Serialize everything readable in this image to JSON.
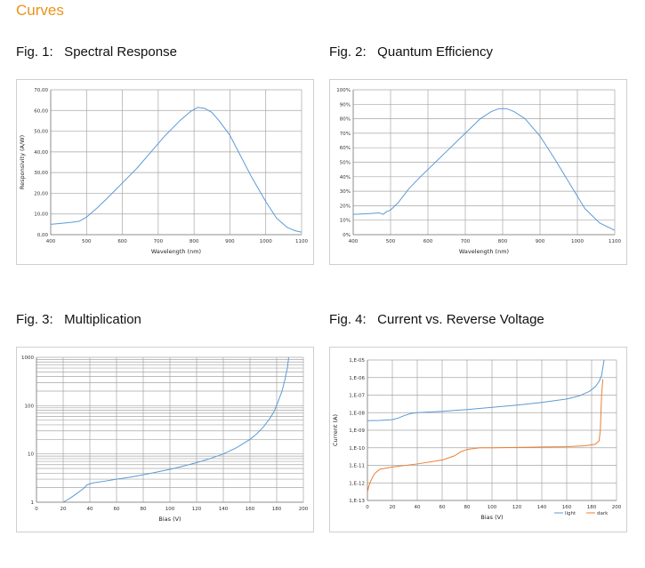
{
  "page": {
    "section_title": "Curves"
  },
  "chart_data": [
    {
      "id": "fig1",
      "figure_title": "Fig. 1:   Spectral Response",
      "type": "line",
      "xlabel": "Wavelength (nm)",
      "ylabel": "Responsivity (A/W)",
      "xlim": [
        400,
        1100
      ],
      "ylim": [
        0,
        70
      ],
      "x_ticks": [
        "400",
        "500",
        "600",
        "700",
        "800",
        "900",
        "1000",
        "1100"
      ],
      "y_ticks": [
        "0,00",
        "10,00",
        "20,00",
        "30,00",
        "40,00",
        "50,00",
        "60,00",
        "70,00"
      ],
      "grid": true,
      "series": [
        {
          "color": "#5b9bd5",
          "x": [
            400,
            430,
            460,
            480,
            500,
            530,
            560,
            600,
            640,
            680,
            720,
            760,
            790,
            810,
            830,
            850,
            870,
            900,
            930,
            960,
            1000,
            1030,
            1060,
            1080,
            1100
          ],
          "y": [
            5,
            5.5,
            6,
            6.5,
            8.5,
            13,
            18,
            25,
            32,
            40,
            48,
            55,
            59.5,
            61.5,
            61,
            59,
            55,
            48,
            38,
            28,
            16,
            8,
            3.5,
            2,
            1.2
          ]
        }
      ]
    },
    {
      "id": "fig2",
      "figure_title": "Fig. 2:   Quantum Efficiency",
      "type": "line",
      "xlabel": "Wavelength (nm)",
      "ylabel": "",
      "xlim": [
        400,
        1100
      ],
      "ylim": [
        0,
        100
      ],
      "x_ticks": [
        "400",
        "500",
        "600",
        "700",
        "800",
        "900",
        "1000",
        "1100"
      ],
      "y_ticks": [
        "0%",
        "10%",
        "20%",
        "30%",
        "40%",
        "50%",
        "60%",
        "70%",
        "80%",
        "90%",
        "100%"
      ],
      "grid": true,
      "series": [
        {
          "color": "#5b9bd5",
          "x": [
            400,
            440,
            470,
            480,
            490,
            500,
            520,
            550,
            580,
            620,
            660,
            700,
            740,
            770,
            790,
            810,
            830,
            860,
            900,
            940,
            980,
            1020,
            1060,
            1100
          ],
          "y": [
            14,
            14.5,
            15,
            14,
            16,
            17,
            22,
            32,
            40,
            50,
            60,
            70,
            80,
            85,
            87,
            87,
            85,
            80,
            68,
            52,
            35,
            18,
            8,
            3
          ]
        }
      ]
    },
    {
      "id": "fig3",
      "figure_title": "Fig. 3:   Multiplication",
      "type": "line",
      "scale_y": "log",
      "xlabel": "Bias (V)",
      "ylabel": "",
      "xlim": [
        0,
        200
      ],
      "ylim": [
        1,
        1000
      ],
      "x_ticks": [
        "0",
        "20",
        "40",
        "60",
        "80",
        "100",
        "120",
        "140",
        "160",
        "180",
        "200"
      ],
      "y_ticks": [
        "1",
        "10",
        "100",
        "1000"
      ],
      "y_tick_values": [
        1,
        10,
        100,
        1000
      ],
      "grid": true,
      "series": [
        {
          "color": "#5b9bd5",
          "x": [
            20,
            25,
            30,
            35,
            38,
            42,
            50,
            60,
            70,
            80,
            90,
            100,
            110,
            120,
            130,
            140,
            150,
            160,
            165,
            170,
            175,
            178,
            181,
            184,
            186,
            188,
            189
          ],
          "y": [
            1,
            1.2,
            1.5,
            1.9,
            2.3,
            2.5,
            2.7,
            3,
            3.3,
            3.7,
            4.2,
            4.8,
            5.6,
            6.6,
            8,
            10,
            13.5,
            20,
            26,
            36,
            55,
            75,
            120,
            200,
            330,
            600,
            1000
          ]
        }
      ]
    },
    {
      "id": "fig4",
      "figure_title": "Fig. 4:   Current vs. Reverse Voltage",
      "type": "line",
      "scale_y": "log",
      "xlabel": "Bias (V)",
      "ylabel": "Current (A)",
      "xlim": [
        0,
        200
      ],
      "ylim": [
        1e-13,
        1e-05
      ],
      "x_ticks": [
        "0",
        "20",
        "40",
        "60",
        "80",
        "100",
        "120",
        "140",
        "160",
        "180",
        "200"
      ],
      "y_ticks": [
        "1,E-13",
        "1,E-12",
        "1,E-11",
        "1,E-10",
        "1,E-09",
        "1,E-08",
        "1,E-07",
        "1,E-06",
        "1,E-05"
      ],
      "y_tick_values": [
        1e-13,
        1e-12,
        1e-11,
        1e-10,
        1e-09,
        1e-08,
        1e-07,
        1e-06,
        1e-05
      ],
      "grid": true,
      "legend": "bottom-right",
      "series": [
        {
          "name": "light",
          "color": "#5b9bd5",
          "x": [
            0,
            10,
            20,
            25,
            30,
            35,
            40,
            60,
            80,
            100,
            120,
            140,
            160,
            170,
            178,
            183,
            186,
            188,
            190
          ],
          "y": [
            3.5e-09,
            3.6e-09,
            4e-09,
            5e-09,
            7e-09,
            9e-09,
            1e-08,
            1.2e-08,
            1.5e-08,
            2e-08,
            2.7e-08,
            3.8e-08,
            6e-08,
            9e-08,
            1.6e-07,
            3e-07,
            6e-07,
            1.3e-06,
            1e-05
          ]
        },
        {
          "name": "dark",
          "color": "#ed7d31",
          "x": [
            0,
            1,
            2,
            4,
            6,
            10,
            20,
            40,
            60,
            70,
            75,
            80,
            90,
            100,
            120,
            140,
            160,
            175,
            183,
            186,
            187,
            188,
            189
          ],
          "y": [
            3e-13,
            6e-13,
            1e-12,
            2e-12,
            3.5e-12,
            6e-12,
            8e-12,
            1.2e-11,
            2e-11,
            3.5e-11,
            6e-11,
            8e-11,
            1e-10,
            1e-10,
            1.05e-10,
            1.1e-10,
            1.15e-10,
            1.3e-10,
            1.6e-10,
            2.5e-10,
            1e-09,
            1e-07,
            8e-07
          ]
        }
      ]
    }
  ]
}
